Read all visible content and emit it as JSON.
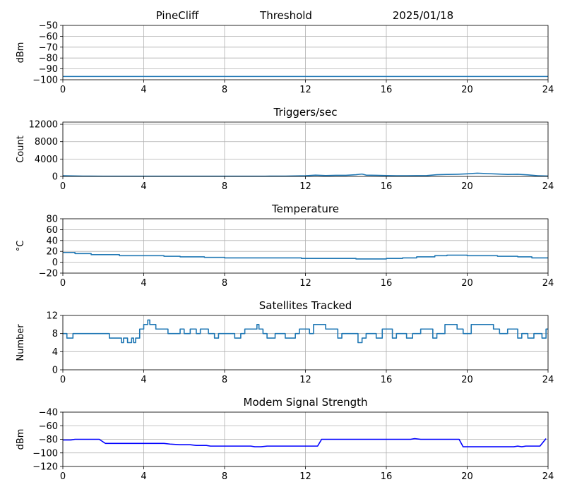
{
  "header": {
    "station": "PineCliff",
    "mode": "Threshold",
    "date": "2025/01/18"
  },
  "chart_data": [
    {
      "type": "line",
      "title": "",
      "xlabel": "",
      "ylabel": "dBm",
      "xlim": [
        0,
        24
      ],
      "ylim": [
        -100,
        -50
      ],
      "xticks": [
        0,
        4,
        8,
        12,
        16,
        20,
        24
      ],
      "yticks": [
        -100,
        -90,
        -80,
        -70,
        -60,
        -50
      ],
      "ytick_labels": [
        "−100",
        "−90",
        "−80",
        "−70",
        "−60",
        "−50"
      ],
      "grid": true,
      "color": "#1f77b4",
      "series": [
        {
          "x": [
            0,
            24
          ],
          "y": [
            -97,
            -97
          ]
        }
      ]
    },
    {
      "type": "line",
      "title": "Triggers/sec",
      "xlabel": "",
      "ylabel": "Count",
      "xlim": [
        0,
        24
      ],
      "ylim": [
        0,
        12500
      ],
      "xticks": [
        0,
        4,
        8,
        12,
        16,
        20,
        24
      ],
      "yticks": [
        0,
        4000,
        8000,
        12000
      ],
      "ytick_labels": [
        "0",
        "4000",
        "8000",
        "12000"
      ],
      "grid": true,
      "color": "#1f77b4",
      "series": [
        {
          "x": [
            0,
            1,
            2,
            4,
            6,
            8,
            10,
            11,
            12,
            12.5,
            13,
            13.5,
            14,
            14.5,
            14.8,
            15,
            15.5,
            16,
            16.5,
            17,
            18,
            18.5,
            19,
            19.5,
            20,
            20.5,
            21,
            21.5,
            22,
            22.5,
            23,
            23.5,
            24
          ],
          "y": [
            150,
            80,
            60,
            50,
            50,
            50,
            60,
            80,
            150,
            300,
            200,
            250,
            250,
            400,
            550,
            300,
            250,
            200,
            150,
            150,
            200,
            400,
            450,
            500,
            600,
            750,
            650,
            550,
            450,
            500,
            350,
            150,
            100
          ]
        }
      ]
    },
    {
      "type": "line",
      "title": "Temperature",
      "xlabel": "",
      "ylabel": "°C",
      "ylabel_display": "°C",
      "xlim": [
        0,
        24
      ],
      "ylim": [
        -20,
        80
      ],
      "xticks": [
        0,
        4,
        8,
        12,
        16,
        20,
        24
      ],
      "yticks": [
        -20,
        0,
        20,
        40,
        60,
        80
      ],
      "ytick_labels": [
        "−20",
        "0",
        "20",
        "40",
        "60",
        "80"
      ],
      "grid": true,
      "color": "#1f77b4",
      "series": [
        {
          "x": [
            0,
            0.6,
            0.6,
            1.4,
            1.4,
            2.8,
            2.8,
            5,
            5,
            5.8,
            5.8,
            7,
            7,
            8,
            8,
            11.8,
            11.8,
            14.5,
            14.5,
            16,
            16,
            16.8,
            16.8,
            17.5,
            17.5,
            18.4,
            18.4,
            19,
            19,
            20,
            20,
            21.5,
            21.5,
            22.5,
            22.5,
            23.2,
            23.2,
            24
          ],
          "y": [
            18,
            18,
            16,
            16,
            14,
            14,
            12,
            12,
            11,
            11,
            10,
            10,
            9,
            9,
            8,
            8,
            7,
            7,
            6,
            6,
            7,
            7,
            8,
            8,
            10,
            10,
            12,
            12,
            13,
            13,
            12,
            12,
            11,
            11,
            10,
            10,
            8,
            8
          ]
        }
      ]
    },
    {
      "type": "line",
      "title": "Satellites Tracked",
      "xlabel": "",
      "ylabel": "Number",
      "xlim": [
        0,
        24
      ],
      "ylim": [
        0,
        12
      ],
      "xticks": [
        0,
        4,
        8,
        12,
        16,
        20,
        24
      ],
      "yticks": [
        0,
        4,
        8,
        12
      ],
      "ytick_labels": [
        "0",
        "4",
        "8",
        "12"
      ],
      "grid": true,
      "color": "#1f77b4",
      "series": [
        {
          "x": [
            0,
            0.2,
            0.2,
            0.5,
            0.5,
            2.3,
            2.3,
            2.9,
            2.9,
            3.0,
            3.0,
            3.2,
            3.2,
            3.4,
            3.4,
            3.5,
            3.5,
            3.6,
            3.6,
            3.8,
            3.8,
            4.0,
            4.0,
            4.2,
            4.2,
            4.3,
            4.3,
            4.6,
            4.6,
            5.2,
            5.2,
            5.8,
            5.8,
            6.0,
            6.0,
            6.3,
            6.3,
            6.6,
            6.6,
            6.8,
            6.8,
            7.2,
            7.2,
            7.5,
            7.5,
            7.7,
            7.7,
            8.5,
            8.5,
            8.8,
            8.8,
            9.0,
            9.0,
            9.6,
            9.6,
            9.7,
            9.7,
            9.9,
            9.9,
            10.1,
            10.1,
            10.5,
            10.5,
            11.0,
            11.0,
            11.5,
            11.5,
            11.7,
            11.7,
            12.2,
            12.2,
            12.4,
            12.4,
            13.0,
            13.0,
            13.6,
            13.6,
            13.8,
            13.8,
            14.6,
            14.6,
            14.8,
            14.8,
            15.0,
            15.0,
            15.5,
            15.5,
            15.8,
            15.8,
            16.3,
            16.3,
            16.5,
            16.5,
            17.0,
            17.0,
            17.3,
            17.3,
            17.7,
            17.7,
            18.3,
            18.3,
            18.5,
            18.5,
            18.9,
            18.9,
            19.5,
            19.5,
            19.8,
            19.8,
            20.2,
            20.2,
            21.3,
            21.3,
            21.6,
            21.6,
            22.0,
            22.0,
            22.5,
            22.5,
            22.7,
            22.7,
            23.0,
            23.0,
            23.3,
            23.3,
            23.7,
            23.7,
            23.9,
            23.9,
            24
          ],
          "y": [
            8,
            8,
            7,
            7,
            8,
            8,
            7,
            7,
            6,
            6,
            7,
            7,
            6,
            6,
            7,
            7,
            6,
            6,
            7,
            7,
            9,
            9,
            10,
            10,
            11,
            11,
            10,
            10,
            9,
            9,
            8,
            8,
            9,
            9,
            8,
            8,
            9,
            9,
            8,
            8,
            9,
            9,
            8,
            8,
            7,
            7,
            8,
            8,
            7,
            7,
            8,
            8,
            9,
            9,
            10,
            10,
            9,
            9,
            8,
            8,
            7,
            7,
            8,
            8,
            7,
            7,
            8,
            8,
            9,
            9,
            8,
            8,
            10,
            10,
            9,
            9,
            7,
            7,
            8,
            8,
            6,
            6,
            7,
            7,
            8,
            8,
            7,
            7,
            9,
            9,
            7,
            7,
            8,
            8,
            7,
            7,
            8,
            8,
            9,
            9,
            7,
            7,
            8,
            8,
            10,
            10,
            9,
            9,
            8,
            8,
            10,
            10,
            9,
            9,
            8,
            8,
            9,
            9,
            7,
            7,
            8,
            8,
            7,
            7,
            8,
            8,
            7,
            7,
            9,
            9
          ]
        }
      ]
    },
    {
      "type": "line",
      "title": "Modem Signal Strength",
      "xlabel": "",
      "ylabel": "dBm",
      "xlim": [
        0,
        24
      ],
      "ylim": [
        -120,
        -40
      ],
      "xticks": [
        0,
        4,
        8,
        12,
        16,
        20,
        24
      ],
      "yticks": [
        -120,
        -100,
        -80,
        -60,
        -40
      ],
      "ytick_labels": [
        "−120",
        "−100",
        "−80",
        "−60",
        "−40"
      ],
      "grid": true,
      "color": "#0000ff",
      "series": [
        {
          "x": [
            0,
            0.4,
            0.6,
            1.8,
            2.1,
            5.0,
            5.3,
            5.8,
            6.3,
            6.6,
            7.1,
            7.3,
            9.3,
            9.5,
            9.8,
            10.1,
            12.6,
            12.8,
            17.2,
            17.4,
            17.7,
            19.6,
            19.8,
            22.3,
            22.5,
            22.7,
            22.9,
            23.6,
            23.9
          ],
          "y": [
            -81,
            -81,
            -80,
            -80,
            -86,
            -86,
            -87,
            -88,
            -88,
            -89,
            -89,
            -90,
            -90,
            -91,
            -91,
            -90,
            -90,
            -80,
            -80,
            -79,
            -80,
            -80,
            -91,
            -91,
            -90,
            -91,
            -90,
            -90,
            -79
          ]
        }
      ]
    }
  ]
}
